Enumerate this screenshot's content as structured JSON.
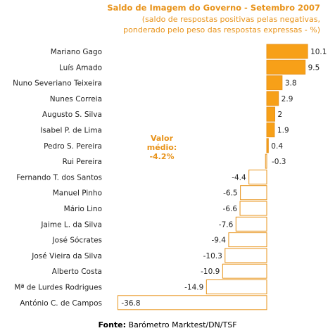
{
  "header": {
    "title": "Saldo de Imagem do Governo - Setembro 2007",
    "subtitle": "(saldo de respostas positivas pelas negativas,\nponderado pelo peso das respostas expressas - %)"
  },
  "annotation": "Valor\nmédio:\n-4.2%",
  "footer": {
    "source_label": "Fonte:",
    "source_value": "Barómetro Marktest/DN/TSF"
  },
  "colors": {
    "positive_fill": "#f7a018",
    "negative_fill": "#ffffff",
    "bar_stroke": "#e8931a",
    "text_accent": "#e8931a"
  },
  "chart_data": {
    "type": "bar",
    "orientation": "horizontal",
    "title": "Saldo de Imagem do Governo - Setembro 2007",
    "categories": [
      "Mariano Gago",
      "Luís Amado",
      "Nuno Severiano Teixeira",
      "Nunes Correia",
      "Augusto S. Silva",
      "Isabel P. de Lima",
      "Pedro S. Pereira",
      "Rui Pereira",
      "Fernando T. dos Santos",
      "Manuel Pinho",
      "Mário Lino",
      "Jaime L. da Silva",
      "José Sócrates",
      "José Vieira da Silva",
      "Alberto Costa",
      "Mª de Lurdes Rodrigues",
      "António C. de Campos"
    ],
    "values": [
      10.1,
      9.5,
      3.8,
      2.9,
      2,
      1.9,
      0.4,
      -0.3,
      -4.4,
      -6.5,
      -6.6,
      -7.6,
      -9.4,
      -10.3,
      -10.9,
      -14.9,
      -36.8
    ],
    "value_labels": [
      "10.1",
      "9.5",
      "3.8",
      "2.9",
      "2",
      "1.9",
      "0.4",
      "-0.3",
      "-4.4",
      "-6.5",
      "-6.6",
      "-7.6",
      "-9.4",
      "-10.3",
      "-10.9",
      "-14.9",
      "-36.8"
    ],
    "xlim": [
      -36.8,
      10.1
    ],
    "grid": false,
    "legend": "none"
  }
}
